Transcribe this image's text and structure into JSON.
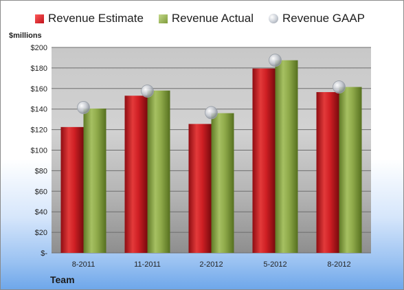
{
  "chart_data": {
    "type": "bar",
    "title": "",
    "ylabel": "$millions",
    "xlabel": "Team",
    "categories": [
      "8-2011",
      "11-2011",
      "2-2012",
      "5-2012",
      "8-2012"
    ],
    "series": [
      {
        "name": "Revenue Estimate",
        "type": "bar",
        "color": "#d42a2a",
        "values": [
          122.5,
          153,
          125.5,
          179.5,
          156.5
        ]
      },
      {
        "name": "Revenue Actual",
        "type": "bar",
        "color": "#8faa4a",
        "values": [
          140.5,
          158,
          136,
          187.5,
          161.5
        ]
      },
      {
        "name": "Revenue GAAP",
        "type": "marker",
        "color": "#c0c4cc",
        "values": [
          141.5,
          157.5,
          136.5,
          187.5,
          161.5
        ]
      }
    ],
    "ylim": [
      0,
      200
    ],
    "yticks": [
      "$-",
      "$20",
      "$40",
      "$60",
      "$80",
      "$100",
      "$120",
      "$140",
      "$160",
      "$180",
      "$200"
    ],
    "grid": true,
    "legend": "top"
  }
}
